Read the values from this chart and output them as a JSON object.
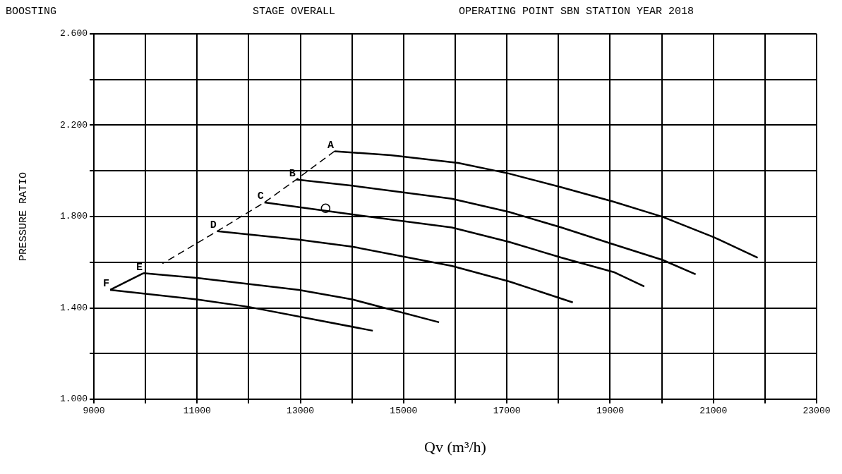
{
  "chart_data": {
    "type": "line",
    "title": "BOOSTING",
    "subtitle": "STAGE OVERALL",
    "xlabel": "Qv (m³/h)",
    "ylabel": "PRESSURE RATIO",
    "annotations": [
      "OPERATING POINT SBN STATION YEAR 2018",
      {
        "text": "A",
        "x": 13662,
        "y": 2.086
      },
      {
        "text": "B",
        "x": 12921,
        "y": 1.962
      },
      {
        "text": "C",
        "x": 12304,
        "y": 1.862
      },
      {
        "text": "D",
        "x": 11391,
        "y": 1.736
      },
      {
        "text": "E",
        "x": 9958,
        "y": 1.552
      },
      {
        "text": "F",
        "x": 9316,
        "y": 1.479
      }
    ],
    "xlim": [
      9000,
      23000
    ],
    "ylim": [
      1.0,
      2.6
    ],
    "xticks": [
      9000,
      {
        "value": 10000,
        "label": null
      },
      11000,
      {
        "value": 12000,
        "label": null
      },
      13000,
      {
        "value": 14000,
        "label": null
      },
      15000,
      {
        "value": 16000,
        "label": null
      },
      17000,
      {
        "value": 18000,
        "label": null
      },
      19000,
      {
        "value": 20000,
        "label": null
      },
      21000,
      {
        "value": 22000,
        "label": null
      },
      23000
    ],
    "yticks": [
      {
        "value": 1.0,
        "label": "1.000"
      },
      {
        "value": 1.2,
        "label": null
      },
      {
        "value": 1.4,
        "label": "1.400"
      },
      {
        "value": 1.6,
        "label": null
      },
      {
        "value": 1.8,
        "label": "1.800"
      },
      {
        "value": 2.0,
        "label": null
      },
      {
        "value": 2.2,
        "label": "2.200"
      },
      {
        "value": 2.4,
        "label": null
      },
      {
        "value": 2.6,
        "label": "2.600"
      }
    ],
    "grid": true,
    "marker": "none",
    "line_style": "solid",
    "series": [
      {
        "color": "#000000",
        "x": [
          13662,
          14748,
          16057,
          17044,
          18056,
          19069,
          20015,
          21003,
          21859
        ],
        "values": [
          2.086,
          2.069,
          2.035,
          1.988,
          1.928,
          1.865,
          1.799,
          1.71,
          1.62
        ]
      },
      {
        "color": "#000000",
        "x": [
          12921,
          14007,
          15933,
          17044,
          18056,
          19069,
          20015,
          20657
        ],
        "values": [
          1.962,
          1.935,
          1.878,
          1.82,
          1.752,
          1.678,
          1.61,
          1.547
        ]
      },
      {
        "color": "#000000",
        "x": [
          12304,
          14007,
          15933,
          17044,
          18056,
          19069,
          19662
        ],
        "values": [
          1.862,
          1.809,
          1.752,
          1.689,
          1.62,
          1.557,
          1.494
        ]
      },
      {
        "color": "#000000",
        "x": [
          11391,
          12970,
          14007,
          15933,
          17044,
          18278
        ],
        "values": [
          1.736,
          1.699,
          1.668,
          1.584,
          1.516,
          1.424
        ]
      },
      {
        "color": "#000000",
        "x": [
          9958,
          10995,
          12970,
          14007,
          15686
        ],
        "values": [
          1.552,
          1.531,
          1.479,
          1.437,
          1.337
        ]
      },
      {
        "color": "#000000",
        "x": [
          9316,
          10995,
          11982,
          14403
        ],
        "values": [
          1.479,
          1.437,
          1.405,
          1.3
        ]
      },
      {
        "color": "#000000",
        "line_style": "dashed",
        "x": [
          13662,
          12921,
          12304,
          11391,
          10329
        ],
        "values": [
          2.086,
          1.962,
          1.862,
          1.736,
          1.594
        ]
      },
      {
        "color": "#000000",
        "x": [
          9958,
          9316
        ],
        "values": [
          1.552,
          1.479
        ]
      },
      {
        "type": "scatter",
        "color": "#000000",
        "marker": "circle",
        "x": [
          13489
        ],
        "values": [
          1.836
        ]
      }
    ]
  }
}
